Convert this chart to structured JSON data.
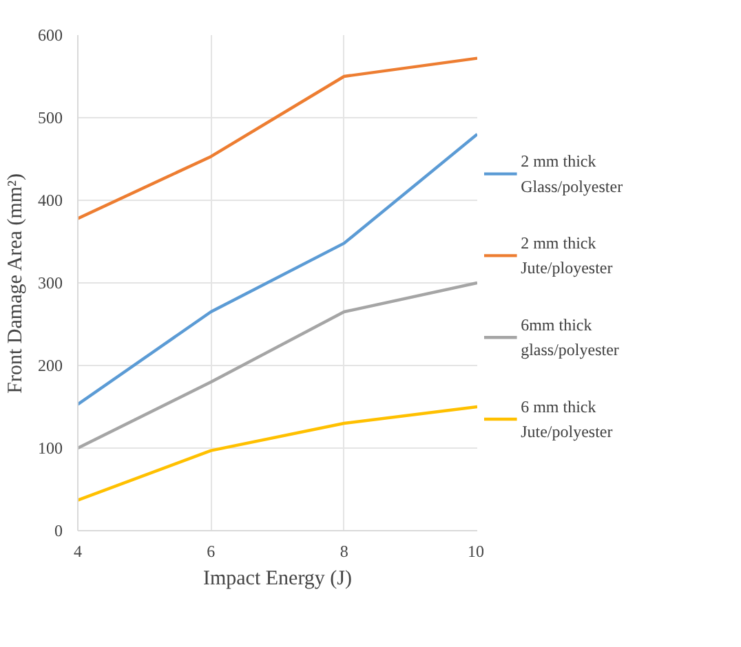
{
  "chart_data": {
    "type": "line",
    "xlabel": "Impact Energy (J)",
    "ylabel": "Front Damage Area (mm²)",
    "x": [
      4,
      6,
      8,
      10
    ],
    "xlim": [
      4,
      10
    ],
    "xticks": [
      4,
      6,
      8,
      10
    ],
    "ylim": [
      0,
      600
    ],
    "yticks": [
      0,
      100,
      200,
      300,
      400,
      500,
      600
    ],
    "grid": true,
    "legend": "right",
    "marker": "none",
    "line_style": "solid",
    "series": [
      {
        "name": "2 mm thick Glass/polyester",
        "color": "#5b9bd5",
        "values": [
          153,
          265,
          348,
          480
        ]
      },
      {
        "name": "2 mm thick Jute/ployester",
        "color": "#ed7d31",
        "values": [
          378,
          453,
          550,
          572
        ]
      },
      {
        "name": "6mm thick glass/polyester",
        "color": "#a5a5a5",
        "values": [
          100,
          180,
          265,
          300
        ]
      },
      {
        "name": "6 mm thick Jute/polyester",
        "color": "#ffc000",
        "values": [
          37,
          97,
          130,
          150
        ]
      }
    ]
  }
}
